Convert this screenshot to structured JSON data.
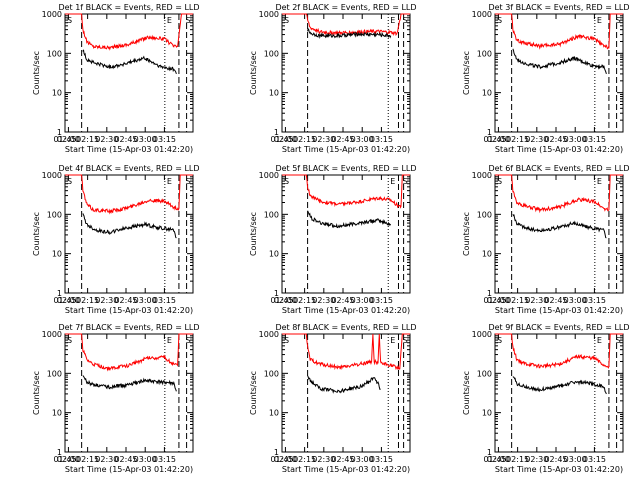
{
  "figure": {
    "xlabel": "Start Time (15-Apr-03 01:42:20)",
    "ylabel": "Counts/sec",
    "x_tick_labels": [
      "01:45",
      "02:00",
      "02:15",
      "02:30",
      "02:45",
      "03:00",
      "03:15"
    ],
    "y_tick_labels": [
      "1",
      "10",
      "100",
      "1000"
    ]
  },
  "colors": {
    "events": "#000000",
    "lld": "#ff0000",
    "axes": "#000000"
  },
  "chart_data": [
    {
      "type": "line",
      "title": "Det 1f BLACK = Events, RED = LLD",
      "x_axis": "time (minutes after 01:42:20)",
      "xlim": [
        0,
        100
      ],
      "ylim": [
        1,
        1000
      ],
      "yscale": "log",
      "marker_labels": [
        "S",
        "E",
        "S"
      ],
      "series": [
        {
          "color": "red",
          "x": [
            0,
            13,
            14,
            17,
            22,
            35,
            50,
            65,
            78,
            85,
            88,
            91,
            92,
            100
          ],
          "y": [
            1000,
            1000,
            400,
            200,
            150,
            140,
            170,
            260,
            230,
            150,
            150,
            1000,
            1000,
            1000
          ]
        },
        {
          "color": "black",
          "x": [
            14,
            17,
            24,
            35,
            48,
            62,
            75,
            85,
            87
          ],
          "y": [
            120,
            70,
            55,
            45,
            55,
            75,
            45,
            40,
            30
          ]
        }
      ]
    },
    {
      "type": "line",
      "title": "Det 2f BLACK = Events, RED = LLD",
      "x_axis": "time (minutes after 01:42:20)",
      "xlim": [
        0,
        100
      ],
      "ylim": [
        1,
        1000
      ],
      "yscale": "log",
      "marker_labels": [
        "S",
        "E",
        "S"
      ],
      "series": [
        {
          "color": "red",
          "x": [
            0,
            19,
            20,
            22,
            30,
            45,
            60,
            75,
            85,
            90,
            93,
            94,
            100
          ],
          "y": [
            1000,
            1000,
            700,
            450,
            350,
            330,
            350,
            360,
            340,
            320,
            1000,
            1000,
            1000
          ]
        },
        {
          "color": "black",
          "x": [
            20,
            23,
            30,
            45,
            60,
            75,
            85
          ],
          "y": [
            400,
            320,
            280,
            280,
            310,
            300,
            280
          ]
        }
      ]
    },
    {
      "type": "line",
      "title": "Det 3f BLACK = Events, RED = LLD",
      "x_axis": "time (minutes after 01:42:20)",
      "xlim": [
        0,
        100
      ],
      "ylim": [
        1,
        1000
      ],
      "yscale": "log",
      "marker_labels": [
        "S",
        "E",
        "S"
      ],
      "series": [
        {
          "color": "red",
          "x": [
            0,
            13,
            14,
            17,
            22,
            35,
            50,
            65,
            78,
            85,
            89,
            90,
            100
          ],
          "y": [
            1000,
            1000,
            400,
            210,
            190,
            150,
            170,
            270,
            230,
            150,
            140,
            1000,
            1000
          ]
        },
        {
          "color": "black",
          "x": [
            14,
            17,
            24,
            35,
            48,
            62,
            75,
            85,
            87
          ],
          "y": [
            120,
            70,
            55,
            45,
            55,
            75,
            50,
            45,
            30
          ]
        }
      ]
    },
    {
      "type": "line",
      "title": "Det 4f BLACK = Events, RED = LLD",
      "x_axis": "time (minutes after 01:42:20)",
      "xlim": [
        0,
        100
      ],
      "ylim": [
        1,
        1000
      ],
      "yscale": "log",
      "marker_labels": [
        "S",
        "E",
        "S"
      ],
      "series": [
        {
          "color": "red",
          "x": [
            0,
            13,
            14,
            17,
            22,
            35,
            50,
            65,
            78,
            85,
            89,
            90,
            100
          ],
          "y": [
            1000,
            1000,
            400,
            180,
            130,
            120,
            150,
            230,
            210,
            150,
            140,
            1000,
            1000
          ]
        },
        {
          "color": "black",
          "x": [
            14,
            17,
            24,
            35,
            48,
            62,
            75,
            85,
            87
          ],
          "y": [
            100,
            55,
            40,
            35,
            45,
            55,
            45,
            40,
            25
          ]
        }
      ]
    },
    {
      "type": "line",
      "title": "Det 5f BLACK = Events, RED = LLD",
      "x_axis": "time (minutes after 01:42:20)",
      "xlim": [
        0,
        100
      ],
      "ylim": [
        1,
        1000
      ],
      "yscale": "log",
      "marker_labels": [
        "S",
        "E",
        "S"
      ],
      "series": [
        {
          "color": "red",
          "x": [
            0,
            19,
            20,
            22,
            30,
            45,
            60,
            75,
            85,
            90,
            93,
            94,
            100
          ],
          "y": [
            1000,
            1000,
            500,
            300,
            210,
            180,
            210,
            260,
            230,
            170,
            160,
            1000,
            1000
          ]
        },
        {
          "color": "black",
          "x": [
            20,
            23,
            30,
            45,
            60,
            75,
            85
          ],
          "y": [
            120,
            80,
            60,
            50,
            60,
            70,
            55
          ]
        }
      ]
    },
    {
      "type": "line",
      "title": "Det 6f BLACK = Events, RED = LLD",
      "x_axis": "time (minutes after 01:42:20)",
      "xlim": [
        0,
        100
      ],
      "ylim": [
        1,
        1000
      ],
      "yscale": "log",
      "marker_labels": [
        "S",
        "E",
        "S"
      ],
      "series": [
        {
          "color": "red",
          "x": [
            0,
            13,
            14,
            17,
            22,
            35,
            50,
            65,
            78,
            85,
            89,
            90,
            100
          ],
          "y": [
            1000,
            1000,
            400,
            190,
            170,
            130,
            150,
            240,
            210,
            140,
            130,
            1000,
            1000
          ]
        },
        {
          "color": "black",
          "x": [
            14,
            17,
            24,
            35,
            48,
            62,
            75,
            85,
            87
          ],
          "y": [
            100,
            60,
            45,
            38,
            45,
            60,
            45,
            40,
            25
          ]
        }
      ]
    },
    {
      "type": "line",
      "title": "Det 7f BLACK = Events, RED = LLD",
      "x_axis": "time (minutes after 01:42:20)",
      "xlim": [
        0,
        100
      ],
      "ylim": [
        1,
        1000
      ],
      "yscale": "log",
      "marker_labels": [
        "S",
        "E",
        "S"
      ],
      "series": [
        {
          "color": "red",
          "x": [
            0,
            13,
            14,
            17,
            22,
            35,
            50,
            65,
            78,
            85,
            88,
            89,
            100
          ],
          "y": [
            1000,
            1000,
            400,
            220,
            170,
            130,
            160,
            250,
            250,
            170,
            160,
            1000,
            1000
          ]
        },
        {
          "color": "black",
          "x": [
            14,
            17,
            24,
            35,
            48,
            62,
            75,
            85,
            87
          ],
          "y": [
            90,
            60,
            50,
            45,
            50,
            65,
            60,
            55,
            35
          ]
        }
      ]
    },
    {
      "type": "line",
      "title": "Det 8f BLACK = Events, RED = LLD",
      "x_axis": "time (minutes after 01:42:20)",
      "xlim": [
        0,
        100
      ],
      "ylim": [
        1,
        1000
      ],
      "yscale": "log",
      "marker_labels": [
        "S",
        "E",
        "S"
      ],
      "series": [
        {
          "color": "red",
          "x": [
            0,
            19,
            20,
            22,
            30,
            45,
            60,
            70,
            71,
            72,
            75,
            76,
            77,
            85,
            90,
            92,
            94,
            100
          ],
          "y": [
            1000,
            1000,
            450,
            220,
            170,
            140,
            170,
            200,
            1000,
            200,
            180,
            1000,
            180,
            160,
            140,
            130,
            1000,
            1000
          ]
        },
        {
          "color": "black",
          "x": [
            20,
            23,
            30,
            45,
            60,
            68,
            72,
            75,
            77
          ],
          "y": [
            90,
            60,
            40,
            35,
            45,
            60,
            80,
            55,
            40
          ]
        }
      ]
    },
    {
      "type": "line",
      "title": "Det 9f BLACK = Events, RED = LLD",
      "x_axis": "time (minutes after 01:42:20)",
      "xlim": [
        0,
        100
      ],
      "ylim": [
        1,
        1000
      ],
      "yscale": "log",
      "marker_labels": [
        "S",
        "E",
        "S"
      ],
      "series": [
        {
          "color": "red",
          "x": [
            0,
            13,
            14,
            17,
            22,
            35,
            50,
            65,
            78,
            85,
            89,
            90,
            100
          ],
          "y": [
            1000,
            1000,
            450,
            230,
            180,
            150,
            170,
            270,
            240,
            160,
            150,
            1000,
            1000
          ]
        },
        {
          "color": "black",
          "x": [
            14,
            17,
            24,
            35,
            48,
            62,
            75,
            85,
            87
          ],
          "y": [
            90,
            55,
            45,
            38,
            45,
            60,
            55,
            45,
            30
          ]
        }
      ]
    }
  ]
}
